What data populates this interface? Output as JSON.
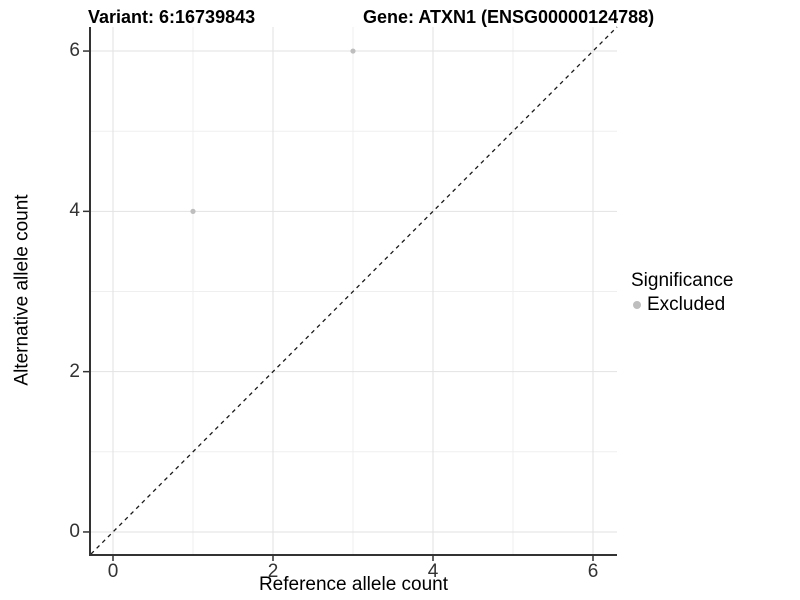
{
  "chart_data": {
    "type": "scatter",
    "titles": {
      "left": "Variant: 6:16739843",
      "right": "Gene: ATXN1 (ENSG00000124788)"
    },
    "xlabel": "Reference allele count",
    "ylabel": "Alternative allele count",
    "x_ticks": [
      0,
      2,
      4,
      6
    ],
    "y_ticks": [
      0,
      2,
      4,
      6
    ],
    "x_minor_ticks": [
      1,
      3,
      5
    ],
    "y_minor_ticks": [
      1,
      3,
      5
    ],
    "xlim": [
      -0.2875,
      6.3
    ],
    "ylim": [
      -0.275,
      6.3
    ],
    "grid": {
      "on": true,
      "major_color": "#e2e2e2",
      "minor_color": "#efefef"
    },
    "axis_color": "#333333",
    "identity_line": {
      "equation": "y = x",
      "style": "dashed",
      "color": "#1a1a1a"
    },
    "series": [
      {
        "name": "Excluded",
        "color": "#bebebe",
        "points": [
          {
            "x": 1,
            "y": 4
          },
          {
            "x": 3,
            "y": 6
          }
        ]
      }
    ],
    "legend": {
      "title": "Significance",
      "position": "right",
      "items": [
        {
          "label": "Excluded",
          "color": "#bebebe"
        }
      ]
    }
  }
}
